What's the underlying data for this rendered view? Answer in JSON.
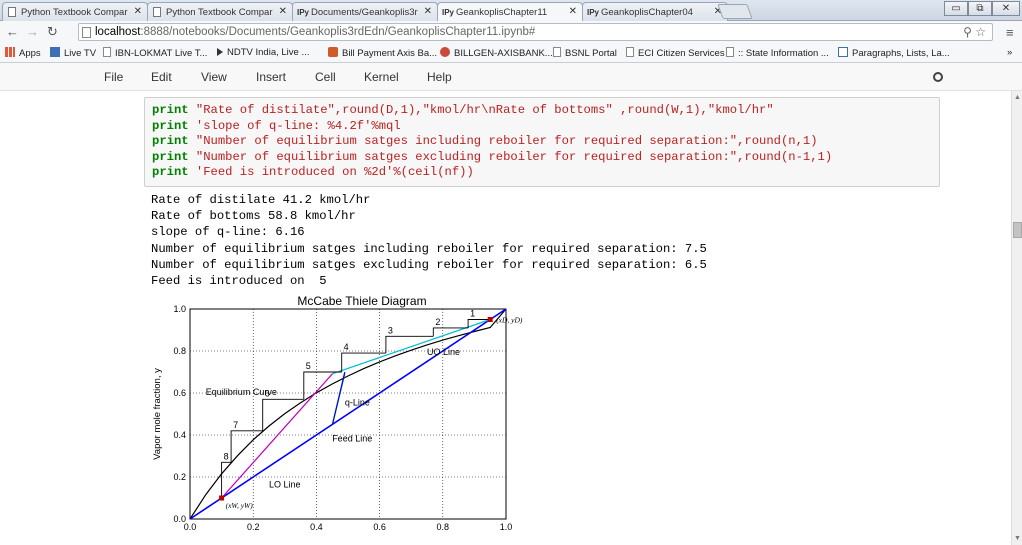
{
  "browser": {
    "tabs": [
      {
        "label": "Python Textbook Compar",
        "icon": "doc"
      },
      {
        "label": "Python Textbook Compar",
        "icon": "doc"
      },
      {
        "label": "Documents/Geankoplis3r",
        "icon": "IPy"
      },
      {
        "label": "GeankoplisChapter11",
        "icon": "IPy"
      },
      {
        "label": "GeankoplisChapter04",
        "icon": "IPy"
      }
    ],
    "url_host": "localhost",
    "url_path": ":8888/notebooks/Documents/Geankoplis3rdEdn/GeankoplisChapter11.ipynb#",
    "bookmarks": [
      "Apps",
      "Live TV",
      "IBN-LOKMAT Live T...",
      "NDTV India, Live ...",
      "Bill Payment Axis Ba...",
      "BILLGEN-AXISBANK...",
      "BSNL Portal",
      "ECI Citizen Services",
      ":: State Information ...",
      "Paragraphs, Lists, La..."
    ]
  },
  "jupyter": {
    "menu": [
      "File",
      "Edit",
      "View",
      "Insert",
      "Cell",
      "Kernel",
      "Help"
    ]
  },
  "cell": {
    "lines": [
      {
        "kw": "print",
        "rest": " \"Rate of distilate\",round(D,1),\"kmol/hr\\nRate of bottoms\" ,round(W,1),\"kmol/hr\""
      },
      {
        "kw": "print",
        "rest": " 'slope of q-line: %4.2f'%mql"
      },
      {
        "kw": "print",
        "rest": " \"Number of equilibrium satges including reboiler for required separation:\",round(n,1)"
      },
      {
        "kw": "print",
        "rest": " \"Number of equilibrium satges excluding reboiler for required separation:\",round(n-1,1)"
      },
      {
        "kw": "print",
        "rest": " 'Feed is introduced on %2d'%(ceil(nf))"
      }
    ],
    "output": [
      "Rate of distilate 41.2 kmol/hr",
      "Rate of bottoms 58.8 kmol/hr",
      "slope of q-line: 6.16",
      "Number of equilibrium satges including reboiler for required separation: 7.5",
      "Number of equilibrium satges excluding reboiler for required separation: 6.5",
      "Feed is introduced on  5"
    ]
  },
  "chart_data": {
    "type": "line",
    "title": "McCabe Thiele Diagram",
    "xlabel": "",
    "ylabel": "Vapor mole fraction, y",
    "xlim": [
      0,
      1
    ],
    "ylim": [
      0,
      1
    ],
    "xticks": [
      "0.0",
      "0.2",
      "0.4",
      "0.6",
      "0.8",
      "1.0"
    ],
    "yticks": [
      "0.0",
      "0.2",
      "0.4",
      "0.6",
      "0.8",
      "1.0"
    ],
    "grid": true,
    "series": [
      {
        "name": "Equilibrium Curve",
        "color": "#000000",
        "x": [
          0,
          0.05,
          0.1,
          0.15,
          0.2,
          0.25,
          0.3,
          0.35,
          0.4,
          0.45,
          0.5,
          0.55,
          0.6,
          0.65,
          0.7,
          0.75,
          0.8,
          0.85,
          0.9,
          0.95,
          1.0
        ],
        "y": [
          0,
          0.116,
          0.215,
          0.301,
          0.377,
          0.443,
          0.502,
          0.554,
          0.601,
          0.643,
          0.681,
          0.716,
          0.748,
          0.777,
          0.804,
          0.829,
          0.852,
          0.873,
          0.893,
          0.912,
          1.0
        ]
      },
      {
        "name": "Diagonal",
        "color": "#0000ff",
        "x": [
          0,
          1
        ],
        "y": [
          0,
          1
        ]
      },
      {
        "name": "UO Line",
        "color": "#00bcd4",
        "x": [
          0.451,
          0.95
        ],
        "y": [
          0.692,
          0.95
        ]
      },
      {
        "name": "LO Line",
        "color": "#c000c0",
        "x": [
          0.1,
          0.451
        ],
        "y": [
          0.1,
          0.692
        ]
      },
      {
        "name": "q-Line",
        "color": "#00a000",
        "x": [
          0.451,
          0.49
        ],
        "y": [
          0.451,
          0.692
        ]
      },
      {
        "name": "Feed Line",
        "color": "#0000ff",
        "x": [
          0.451,
          0.49
        ],
        "y": [
          0.451,
          0.7
        ]
      }
    ],
    "stages": [
      {
        "label": "1",
        "x": [
          0.95,
          0.88,
          0.88
        ],
        "y": [
          0.95,
          0.95,
          0.91
        ]
      },
      {
        "label": "2",
        "x": [
          0.88,
          0.77,
          0.77
        ],
        "y": [
          0.91,
          0.91,
          0.87
        ]
      },
      {
        "label": "3",
        "x": [
          0.77,
          0.62,
          0.62
        ],
        "y": [
          0.87,
          0.87,
          0.79
        ]
      },
      {
        "label": "4",
        "x": [
          0.62,
          0.48,
          0.48
        ],
        "y": [
          0.79,
          0.79,
          0.7
        ]
      },
      {
        "label": "5",
        "x": [
          0.48,
          0.36,
          0.36
        ],
        "y": [
          0.7,
          0.7,
          0.57
        ]
      },
      {
        "label": "6",
        "x": [
          0.36,
          0.23,
          0.23
        ],
        "y": [
          0.57,
          0.57,
          0.42
        ]
      },
      {
        "label": "7",
        "x": [
          0.23,
          0.13,
          0.13
        ],
        "y": [
          0.42,
          0.42,
          0.27
        ]
      },
      {
        "label": "8",
        "x": [
          0.13,
          0.1,
          0.1
        ],
        "y": [
          0.27,
          0.27,
          0.1
        ]
      }
    ],
    "points": [
      {
        "label": "(xD, yD)",
        "x": 0.95,
        "y": 0.95,
        "color": "#c00000"
      },
      {
        "label": "(xW, yW)",
        "x": 0.1,
        "y": 0.1,
        "color": "#c00000"
      }
    ],
    "annotations": [
      {
        "text": "Equilibrium Curve",
        "x": 0.05,
        "y": 0.59
      },
      {
        "text": "UO Line",
        "x": 0.75,
        "y": 0.78
      },
      {
        "text": "q-Line",
        "x": 0.49,
        "y": 0.54
      },
      {
        "text": "Feed Line",
        "x": 0.45,
        "y": 0.37
      },
      {
        "text": "LO Line",
        "x": 0.25,
        "y": 0.15
      }
    ]
  }
}
